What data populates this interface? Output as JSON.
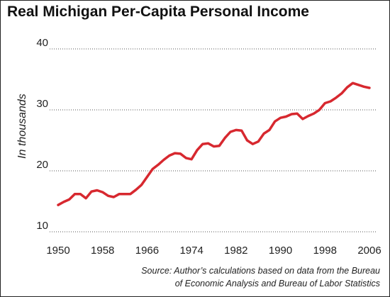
{
  "chart_data": {
    "type": "line",
    "title": "Real Michigan Per-Capita Personal Income",
    "ylabel": "In thousands",
    "xlabel": "",
    "xlim": [
      1950,
      2006
    ],
    "ylim": [
      10,
      40
    ],
    "x_ticks": [
      "1950",
      "1958",
      "1966",
      "1974",
      "1982",
      "1990",
      "1998",
      "2006"
    ],
    "y_ticks": [
      "40",
      "30",
      "20",
      "10"
    ],
    "grid": "horizontal dotted",
    "line_color": "#d7282f",
    "series": [
      {
        "x": [
          1950,
          1951,
          1952,
          1953,
          1954,
          1955,
          1956,
          1957,
          1958,
          1959,
          1960,
          1961,
          1962,
          1963,
          1964,
          1965,
          1966,
          1967,
          1968,
          1969,
          1970,
          1971,
          1972,
          1973,
          1974,
          1975,
          1976,
          1977,
          1978,
          1979,
          1980,
          1981,
          1982,
          1983,
          1984,
          1985,
          1986,
          1987,
          1988,
          1989,
          1990,
          1991,
          1992,
          1993,
          1994,
          1995,
          1996,
          1997,
          1998,
          1999,
          2000,
          2001,
          2002,
          2003,
          2004,
          2005,
          2006
        ],
        "values": [
          14.4,
          14.9,
          15.3,
          16.2,
          16.2,
          15.5,
          16.6,
          16.8,
          16.5,
          15.9,
          15.7,
          16.2,
          16.2,
          16.2,
          16.9,
          17.7,
          19.0,
          20.3,
          21.0,
          21.8,
          22.5,
          22.9,
          22.8,
          22.1,
          21.9,
          23.4,
          24.4,
          24.5,
          24.0,
          24.1,
          25.4,
          26.4,
          26.7,
          26.6,
          25.0,
          24.4,
          24.8,
          26.1,
          26.7,
          28.1,
          28.7,
          28.9,
          29.3,
          29.4,
          28.5,
          29.0,
          29.4,
          30.0,
          31.1,
          31.4,
          32.0,
          32.7,
          33.7,
          34.4,
          34.1,
          33.8,
          33.6
        ]
      }
    ]
  },
  "source_lines": [
    "Source: Author’s calculations based on data from the Bureau",
    "of Economic Analysis and Bureau of Labor Statistics"
  ]
}
